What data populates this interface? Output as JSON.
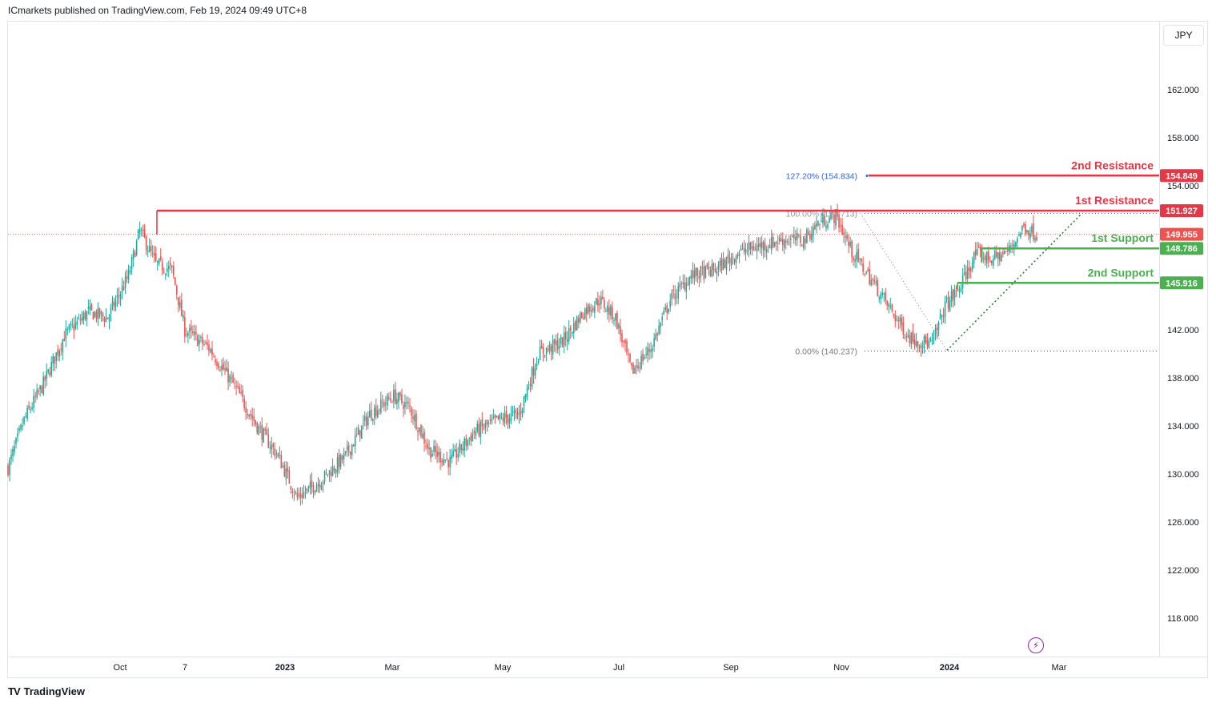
{
  "header": {
    "published": "ICmarkets published on TradingView.com, Feb 19, 2024 09:49 UTC+8"
  },
  "currency": "JPY",
  "footer": {
    "brand": "TradingView",
    "logo": "TV"
  },
  "colors": {
    "up": "#26a69a",
    "down": "#ef5350",
    "resistance": "#e53745",
    "support": "#4caf50",
    "fib_label": "#2962ff"
  },
  "chart_data": {
    "type": "candlestick",
    "y_axis": {
      "ticks": [
        "162.000",
        "158.000",
        "154.000",
        "142.000",
        "138.000",
        "134.000",
        "130.000",
        "126.000",
        "122.000",
        "118.000"
      ],
      "range": [
        115.5,
        165.5
      ]
    },
    "x_axis": {
      "labels": [
        {
          "text": "Oct",
          "bold": false
        },
        {
          "text": "7",
          "bold": false
        },
        {
          "text": "2023",
          "bold": true
        },
        {
          "text": "Mar",
          "bold": false
        },
        {
          "text": "May",
          "bold": false
        },
        {
          "text": "Jul",
          "bold": false
        },
        {
          "text": "Sep",
          "bold": false
        },
        {
          "text": "Nov",
          "bold": false
        },
        {
          "text": "2024",
          "bold": true
        },
        {
          "text": "Mar",
          "bold": false
        }
      ]
    },
    "levels": [
      {
        "name": "2nd Resistance",
        "value": 154.849,
        "tag": "154.849",
        "kind": "resistance"
      },
      {
        "name": "1st Resistance",
        "value": 151.927,
        "tag": "151.927",
        "kind": "resistance"
      },
      {
        "name": "1st Support",
        "value": 148.786,
        "tag": "148.786",
        "kind": "support"
      },
      {
        "name": "2nd Support",
        "value": 145.916,
        "tag": "145.916",
        "kind": "support"
      }
    ],
    "current_price": {
      "value": 149.955,
      "tag": "149.955"
    },
    "fibonacci": [
      {
        "label": "127.20% (154.834)",
        "value": 154.834
      },
      {
        "label": "100.00% (151.713)",
        "value": 151.713
      },
      {
        "label": "0.00% (140.237)",
        "value": 140.237
      }
    ],
    "price_path_anchors": [
      [
        0,
        130.5
      ],
      [
        10,
        134.5
      ],
      [
        22,
        137.5
      ],
      [
        35,
        141.5
      ],
      [
        50,
        143.5
      ],
      [
        62,
        143.0
      ],
      [
        75,
        146.5
      ],
      [
        82,
        150.3
      ],
      [
        92,
        147.5
      ],
      [
        102,
        147.0
      ],
      [
        110,
        142.0
      ],
      [
        125,
        140.5
      ],
      [
        140,
        137.5
      ],
      [
        155,
        134.0
      ],
      [
        168,
        131.5
      ],
      [
        180,
        128.0
      ],
      [
        195,
        129.5
      ],
      [
        210,
        131.5
      ],
      [
        225,
        135.0
      ],
      [
        240,
        136.5
      ],
      [
        250,
        135.5
      ],
      [
        262,
        132.0
      ],
      [
        275,
        131.0
      ],
      [
        290,
        133.5
      ],
      [
        305,
        134.5
      ],
      [
        318,
        135.0
      ],
      [
        330,
        140.0
      ],
      [
        345,
        141.0
      ],
      [
        358,
        143.5
      ],
      [
        368,
        144.5
      ],
      [
        378,
        143.0
      ],
      [
        388,
        138.5
      ],
      [
        400,
        140.5
      ],
      [
        412,
        144.5
      ],
      [
        425,
        146.5
      ],
      [
        440,
        147.0
      ],
      [
        455,
        148.5
      ],
      [
        468,
        149.0
      ],
      [
        482,
        149.5
      ],
      [
        495,
        149.5
      ],
      [
        505,
        151.0
      ],
      [
        515,
        151.5
      ],
      [
        525,
        148.5
      ],
      [
        538,
        146.0
      ],
      [
        550,
        143.5
      ],
      [
        560,
        141.5
      ],
      [
        568,
        141.0
      ],
      [
        575,
        140.8
      ],
      [
        583,
        144.0
      ],
      [
        592,
        145.5
      ],
      [
        602,
        148.3
      ],
      [
        612,
        147.9
      ],
      [
        622,
        148.5
      ],
      [
        632,
        150.6
      ],
      [
        640,
        149.95
      ]
    ]
  }
}
